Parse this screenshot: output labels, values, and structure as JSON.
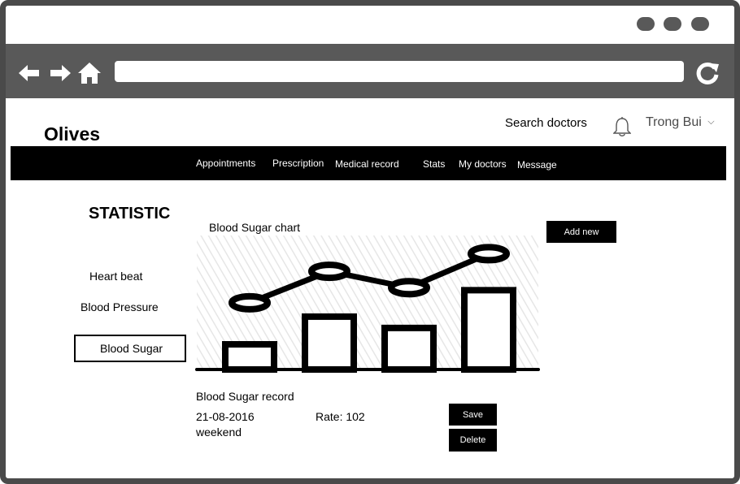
{
  "browser": {
    "window_controls": [
      "dot",
      "dot",
      "dot"
    ],
    "nav_icons": [
      "back-arrow-icon",
      "forward-arrow-icon",
      "home-icon"
    ],
    "address": "",
    "reload_icon": "reload-icon"
  },
  "header": {
    "brand": "Olives",
    "search_link": "Search doctors",
    "bell_icon": "bell-icon",
    "user_name": "Trong Bui",
    "user_chevron": "⌵"
  },
  "navbar": {
    "items": [
      "Appointments",
      "Prescription",
      "Medical record",
      "Stats",
      "My doctors",
      "Message"
    ]
  },
  "page": {
    "title": "STATISTIC",
    "sidebar": {
      "items": [
        "Heart beat",
        "Blood Pressure",
        "Blood Sugar"
      ],
      "active": "Blood Sugar"
    },
    "chart_title": "Blood Sugar chart",
    "add_new": "Add new"
  },
  "record": {
    "title": "Blood Sugar record",
    "date": "21-08-2016",
    "note": "weekend",
    "rate": "Rate: 102",
    "save": "Save",
    "delete": "Delete"
  },
  "chart_data": {
    "type": "bar",
    "categories": [
      "",
      "",
      "",
      ""
    ],
    "series": [
      {
        "values": [
          2,
          4.2,
          3.3,
          6.3
        ]
      },
      {
        "values": [
          5.3,
          7.8,
          6.5,
          9.2
        ]
      }
    ],
    "series_types": [
      "bar",
      "line"
    ],
    "ylim": [
      0,
      10
    ],
    "grid": false,
    "background": "diagonal hatching",
    "colors": {
      "mark": "#000000",
      "hatch": "#e6e6e6"
    }
  }
}
